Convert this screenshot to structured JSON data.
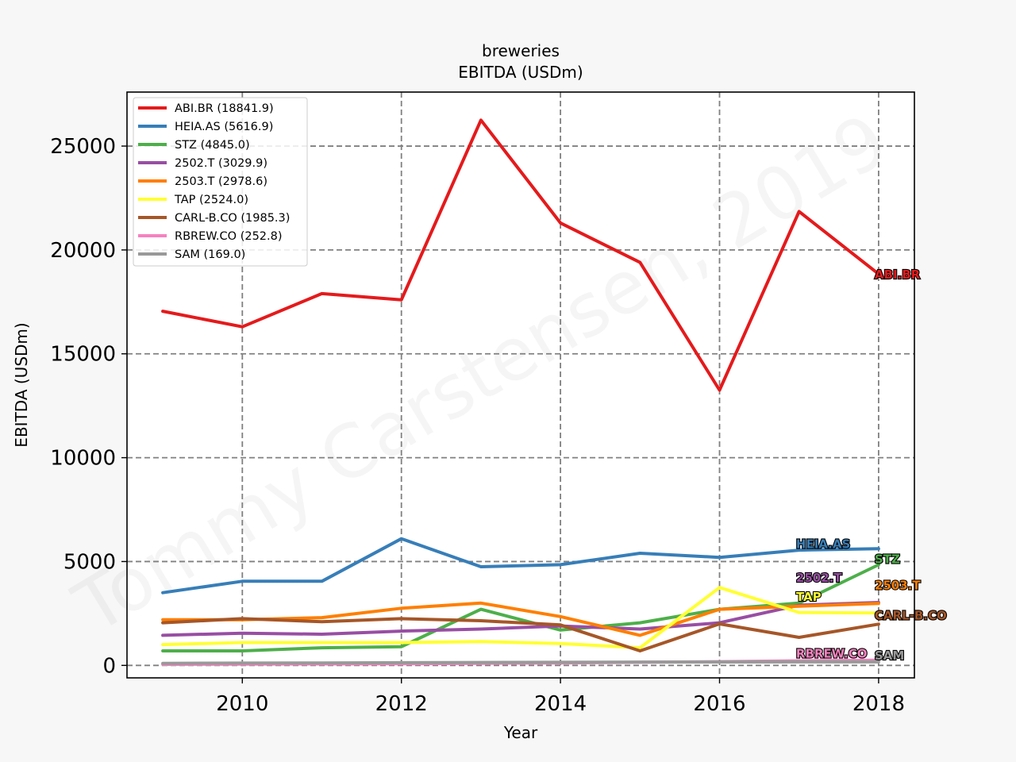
{
  "chart_data": {
    "type": "line",
    "title": "breweries",
    "subtitle": "EBITDA (USDm)",
    "xlabel": "Year",
    "ylabel": "EBITDA (USDm)",
    "xlim": [
      2008.55,
      2018.45
    ],
    "ylim": [
      -600,
      27600
    ],
    "xticks": [
      2010,
      2012,
      2014,
      2016,
      2018
    ],
    "yticks": [
      0,
      5000,
      10000,
      15000,
      20000,
      25000
    ],
    "grid": true,
    "legend_position": "upper-left",
    "watermark": "Tommy Carstensen, 2019",
    "x": [
      2009,
      2010,
      2011,
      2012,
      2013,
      2014,
      2015,
      2016,
      2017,
      2018
    ],
    "series": [
      {
        "name": "ABI.BR (18841.9)",
        "end_label": "ABI.BR",
        "color": "#e41a1c",
        "values": [
          17050,
          16300,
          17900,
          17600,
          26250,
          21300,
          19400,
          13250,
          21850,
          18841.9
        ]
      },
      {
        "name": "HEIA.AS (5616.9)",
        "end_label": "HEIA.AS",
        "color": "#377eb8",
        "values": [
          3500,
          4050,
          4050,
          6100,
          4750,
          4850,
          5400,
          5200,
          5550,
          5616.9
        ]
      },
      {
        "name": "STZ (4845.0)",
        "end_label": "STZ",
        "color": "#4daf4a",
        "values": [
          700,
          700,
          850,
          900,
          2700,
          1700,
          2050,
          2700,
          3000,
          4845.0
        ]
      },
      {
        "name": "2502.T (3029.9)",
        "end_label": "2502.T",
        "color": "#984ea3",
        "values": [
          1450,
          1550,
          1500,
          1650,
          1750,
          1900,
          1750,
          2050,
          2900,
          3029.9
        ]
      },
      {
        "name": "2503.T (2978.6)",
        "end_label": "2503.T",
        "color": "#ff7f00",
        "values": [
          2200,
          2200,
          2300,
          2750,
          3000,
          2350,
          1450,
          2700,
          2850,
          2978.6
        ]
      },
      {
        "name": "TAP (2524.0)",
        "end_label": "TAP",
        "color": "#ffff33",
        "values": [
          1000,
          1100,
          1100,
          1100,
          1150,
          1050,
          850,
          3750,
          2550,
          2524.0
        ]
      },
      {
        "name": "CARL-B.CO (1985.3)",
        "end_label": "CARL-B.CO",
        "color": "#a65628",
        "values": [
          2050,
          2250,
          2100,
          2250,
          2150,
          1950,
          700,
          2000,
          1350,
          1985.3
        ]
      },
      {
        "name": "RBREW.CO (252.8)",
        "end_label": "RBREW.CO",
        "color": "#f781bf",
        "values": [
          50,
          60,
          70,
          80,
          100,
          120,
          150,
          180,
          220,
          252.8
        ]
      },
      {
        "name": "SAM (169.0)",
        "end_label": "SAM",
        "color": "#999999",
        "values": [
          100,
          110,
          120,
          130,
          140,
          150,
          160,
          165,
          168,
          169.0
        ]
      }
    ]
  }
}
